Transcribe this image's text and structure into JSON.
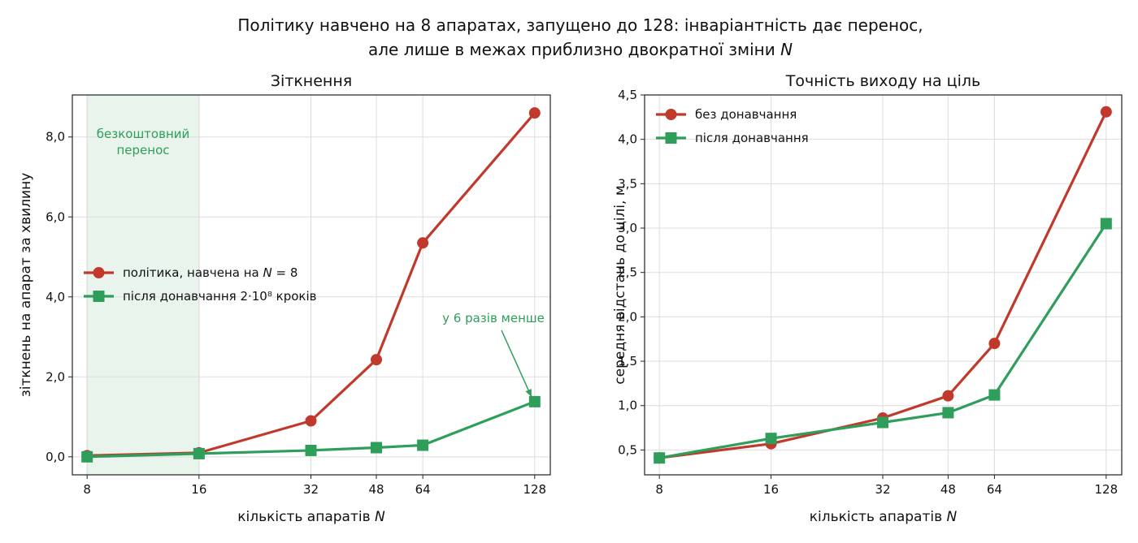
{
  "suptitle": {
    "line1": "Політику навчено на 8 апаратах, запущено до 128: інваріантність дає перенос,",
    "line2": "але лише в межах приблизно двократної зміни N"
  },
  "colors": {
    "red": "#c0392b",
    "green": "#2e9e5a",
    "shade": "#e8f4ec"
  },
  "chart_data": [
    {
      "type": "line",
      "title": "Зіткнення",
      "xlabel": "кількість апаратів N",
      "ylabel": "зіткнень на апарат за хвилину",
      "xscale": "log2",
      "x": [
        8,
        16,
        32,
        48,
        64,
        128
      ],
      "xticks": [
        "8",
        "16",
        "32",
        "48",
        "64",
        "128"
      ],
      "xlim": [
        7.3,
        141
      ],
      "ylim": [
        -0.45,
        9.05
      ],
      "yticks": [
        0,
        2,
        4,
        6,
        8
      ],
      "ytick_labels": [
        "0,0",
        "2,0",
        "4,0",
        "6,0",
        "8,0"
      ],
      "grid": true,
      "legend_position": "center-left",
      "series": [
        {
          "name": "політика, навчена на N = 8",
          "color": "#c0392b",
          "marker": "circle",
          "values": [
            0.03,
            0.1,
            0.9,
            2.43,
            5.35,
            8.6
          ]
        },
        {
          "name": "після донавчання 2·10⁸ кроків",
          "color": "#2e9e5a",
          "marker": "square",
          "values": [
            0.0,
            0.08,
            0.16,
            0.23,
            0.29,
            1.38
          ]
        }
      ],
      "shaded_region": {
        "x_from": 8,
        "x_to": 16,
        "label_line1": "безкоштовний",
        "label_line2": "перенос"
      },
      "annotation": {
        "text": "у 6 разів менше",
        "target_x": 128,
        "target_y": 1.38
      }
    },
    {
      "type": "line",
      "title": "Точність виходу на ціль",
      "xlabel": "кількість апаратів N",
      "ylabel": "середня відстань до цілі, м",
      "xscale": "log2",
      "x": [
        8,
        16,
        32,
        48,
        64,
        128
      ],
      "xticks": [
        "8",
        "16",
        "32",
        "48",
        "64",
        "128"
      ],
      "xlim": [
        7.3,
        141
      ],
      "ylim": [
        0.22,
        4.5
      ],
      "yticks": [
        0.5,
        1.0,
        1.5,
        2.0,
        2.5,
        3.0,
        3.5,
        4.0,
        4.5
      ],
      "ytick_labels": [
        "0,5",
        "1,0",
        "1,5",
        "2,0",
        "2,5",
        "3,0",
        "3,5",
        "4,0",
        "4,5"
      ],
      "grid": true,
      "legend_position": "top-left",
      "series": [
        {
          "name": "без донавчання",
          "color": "#c0392b",
          "marker": "circle",
          "values": [
            0.41,
            0.57,
            0.86,
            1.11,
            1.7,
            4.31
          ]
        },
        {
          "name": "після донавчання",
          "color": "#2e9e5a",
          "marker": "square",
          "values": [
            0.41,
            0.63,
            0.81,
            0.92,
            1.12,
            3.05
          ]
        }
      ]
    }
  ]
}
